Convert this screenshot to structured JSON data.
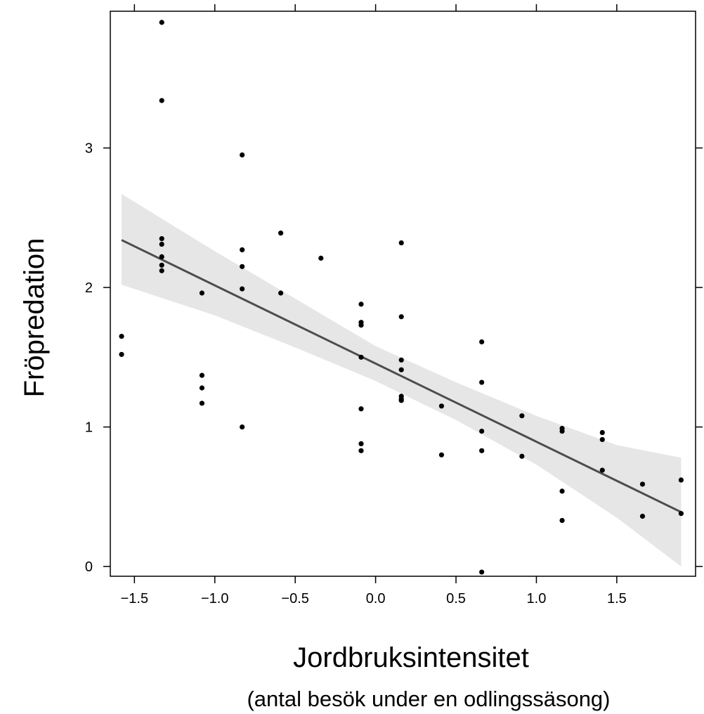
{
  "chart_data": {
    "type": "scatter",
    "title": "",
    "xlabel": "Jordbruksintensitet",
    "xlabel_sub": "(antal besök under en odlingssäsong)",
    "ylabel": "Fröpredation",
    "xlim": [
      -1.65,
      1.99
    ],
    "ylim": [
      -0.07,
      3.98
    ],
    "x_ticks": [
      -1.5,
      -1.0,
      -0.5,
      0.0,
      0.5,
      1.0,
      1.5
    ],
    "x_tick_labels": [
      "−1.5",
      "−1.0",
      "−0.5",
      "0.0",
      "0.5",
      "1.0",
      "1.5"
    ],
    "y_ticks": [
      0,
      1,
      2,
      3
    ],
    "y_tick_labels": [
      "0",
      "1",
      "2",
      "3"
    ],
    "grid": false,
    "points": [
      [
        -1.58,
        1.65
      ],
      [
        -1.58,
        1.52
      ],
      [
        -1.33,
        3.9
      ],
      [
        -1.33,
        3.34
      ],
      [
        -1.33,
        2.35
      ],
      [
        -1.33,
        2.31
      ],
      [
        -1.33,
        2.22
      ],
      [
        -1.33,
        2.16
      ],
      [
        -1.33,
        2.12
      ],
      [
        -1.08,
        1.96
      ],
      [
        -1.08,
        1.37
      ],
      [
        -1.08,
        1.28
      ],
      [
        -1.08,
        1.17
      ],
      [
        -0.83,
        2.95
      ],
      [
        -0.83,
        2.27
      ],
      [
        -0.83,
        2.15
      ],
      [
        -0.83,
        1.99
      ],
      [
        -0.83,
        1.0
      ],
      [
        -0.59,
        2.39
      ],
      [
        -0.59,
        1.96
      ],
      [
        -0.34,
        2.21
      ],
      [
        -0.09,
        1.88
      ],
      [
        -0.09,
        1.75
      ],
      [
        -0.09,
        1.73
      ],
      [
        -0.09,
        1.5
      ],
      [
        -0.09,
        1.13
      ],
      [
        -0.09,
        0.88
      ],
      [
        -0.09,
        0.83
      ],
      [
        0.16,
        2.32
      ],
      [
        0.16,
        1.79
      ],
      [
        0.16,
        1.48
      ],
      [
        0.16,
        1.41
      ],
      [
        0.16,
        1.22
      ],
      [
        0.16,
        1.2
      ],
      [
        0.16,
        1.19
      ],
      [
        0.41,
        1.15
      ],
      [
        0.41,
        0.8
      ],
      [
        0.66,
        1.61
      ],
      [
        0.66,
        1.32
      ],
      [
        0.66,
        0.97
      ],
      [
        0.66,
        0.83
      ],
      [
        0.66,
        -0.04
      ],
      [
        0.91,
        1.08
      ],
      [
        0.91,
        0.79
      ],
      [
        1.16,
        0.99
      ],
      [
        1.16,
        0.97
      ],
      [
        1.16,
        0.54
      ],
      [
        1.16,
        0.33
      ],
      [
        1.41,
        0.96
      ],
      [
        1.41,
        0.91
      ],
      [
        1.41,
        0.69
      ],
      [
        1.66,
        0.59
      ],
      [
        1.66,
        0.36
      ],
      [
        1.9,
        0.62
      ],
      [
        1.9,
        0.38
      ]
    ],
    "fit_line": {
      "x": [
        -1.58,
        1.9
      ],
      "y": [
        2.34,
        0.39
      ],
      "color": "#4d4d4d"
    },
    "confidence_band": {
      "x": [
        -1.58,
        -1.0,
        -0.5,
        0.0,
        0.5,
        1.0,
        1.5,
        1.9
      ],
      "lower": [
        2.02,
        1.8,
        1.57,
        1.33,
        1.05,
        0.73,
        0.35,
        0.0
      ],
      "upper": [
        2.67,
        2.26,
        1.92,
        1.58,
        1.32,
        1.08,
        0.87,
        0.78
      ],
      "color": "#e6e6e6"
    }
  }
}
